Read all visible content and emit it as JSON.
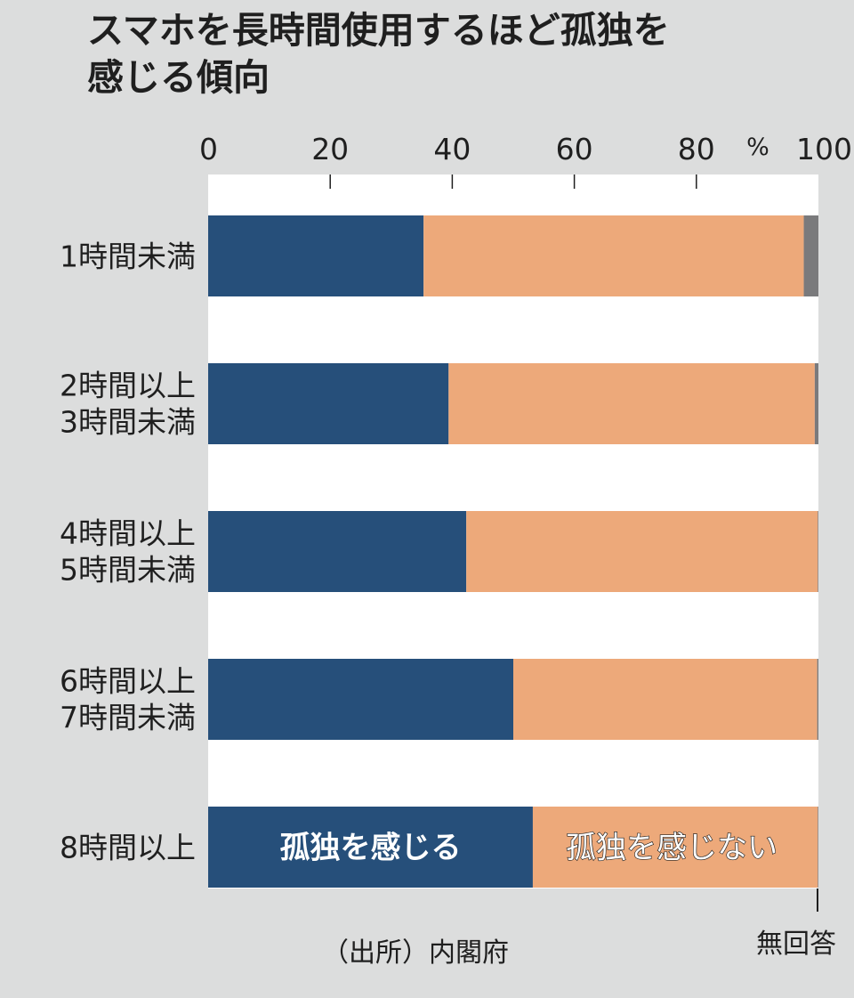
{
  "title_lines": [
    "スマホを長時間使用するほど孤独を",
    "感じる傾向"
  ],
  "source": "（出所）内閣府",
  "chart_data": {
    "type": "bar",
    "orientation": "horizontal",
    "stacked": true,
    "categories": [
      [
        "1時間未満"
      ],
      [
        "2時間以上",
        "3時間未満"
      ],
      [
        "4時間以上",
        "5時間未満"
      ],
      [
        "6時間以上",
        "7時間未満"
      ],
      [
        "8時間以上"
      ]
    ],
    "series": [
      {
        "name": "孤独を感じる",
        "color": "#264f7a",
        "values": [
          35.3,
          39.4,
          42.3,
          50.0,
          53.2
        ]
      },
      {
        "name": "孤独を感じない",
        "color": "#eda97a",
        "values": [
          62.3,
          60.0,
          57.6,
          49.8,
          46.7
        ]
      },
      {
        "name": "無回答",
        "color": "#7a7a7c",
        "values": [
          2.4,
          0.6,
          0.1,
          0.2,
          0.1
        ]
      }
    ],
    "xlim": [
      0,
      100
    ],
    "xticks": [
      0,
      20,
      40,
      60,
      80,
      100
    ],
    "unit": "%",
    "grid": false,
    "legend_placement": "inside-last-bar"
  }
}
